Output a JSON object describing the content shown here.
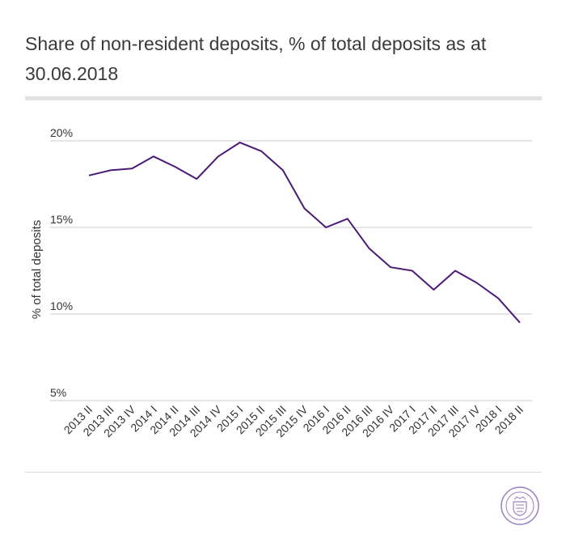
{
  "title": "Share of non-resident deposits, % of total deposits as at 30.06.2018",
  "colors": {
    "line": "#4b1a78",
    "grid": "#cccccc",
    "seal": "#9b7fc0"
  },
  "chart_data": {
    "type": "line",
    "title": "Share of non-resident deposits, % of total deposits as at 30.06.2018",
    "xlabel": "",
    "ylabel": "% of total deposits",
    "ylim": [
      5,
      20
    ],
    "yticks": [
      20,
      15,
      10,
      5
    ],
    "ytick_labels": [
      "20%",
      "15%",
      "10%",
      "5%"
    ],
    "grid": true,
    "categories": [
      "2013 II",
      "2013 III",
      "2013 IV",
      "2014 I",
      "2014 II",
      "2014 III",
      "2014 IV",
      "2015 I",
      "2015 II",
      "2015 III",
      "2015 IV",
      "2016 I",
      "2016 II",
      "2016 III",
      "2016 IV",
      "2017 I",
      "2017 II",
      "2017 III",
      "2017 IV",
      "2018 I",
      "2018 II"
    ],
    "series": [
      {
        "values": [
          18.0,
          18.3,
          18.4,
          19.1,
          18.5,
          17.8,
          19.1,
          19.9,
          19.4,
          18.3,
          16.1,
          15.0,
          15.5,
          13.8,
          12.7,
          12.5,
          11.4,
          12.5,
          11.8,
          10.9,
          9.5
        ]
      }
    ]
  }
}
